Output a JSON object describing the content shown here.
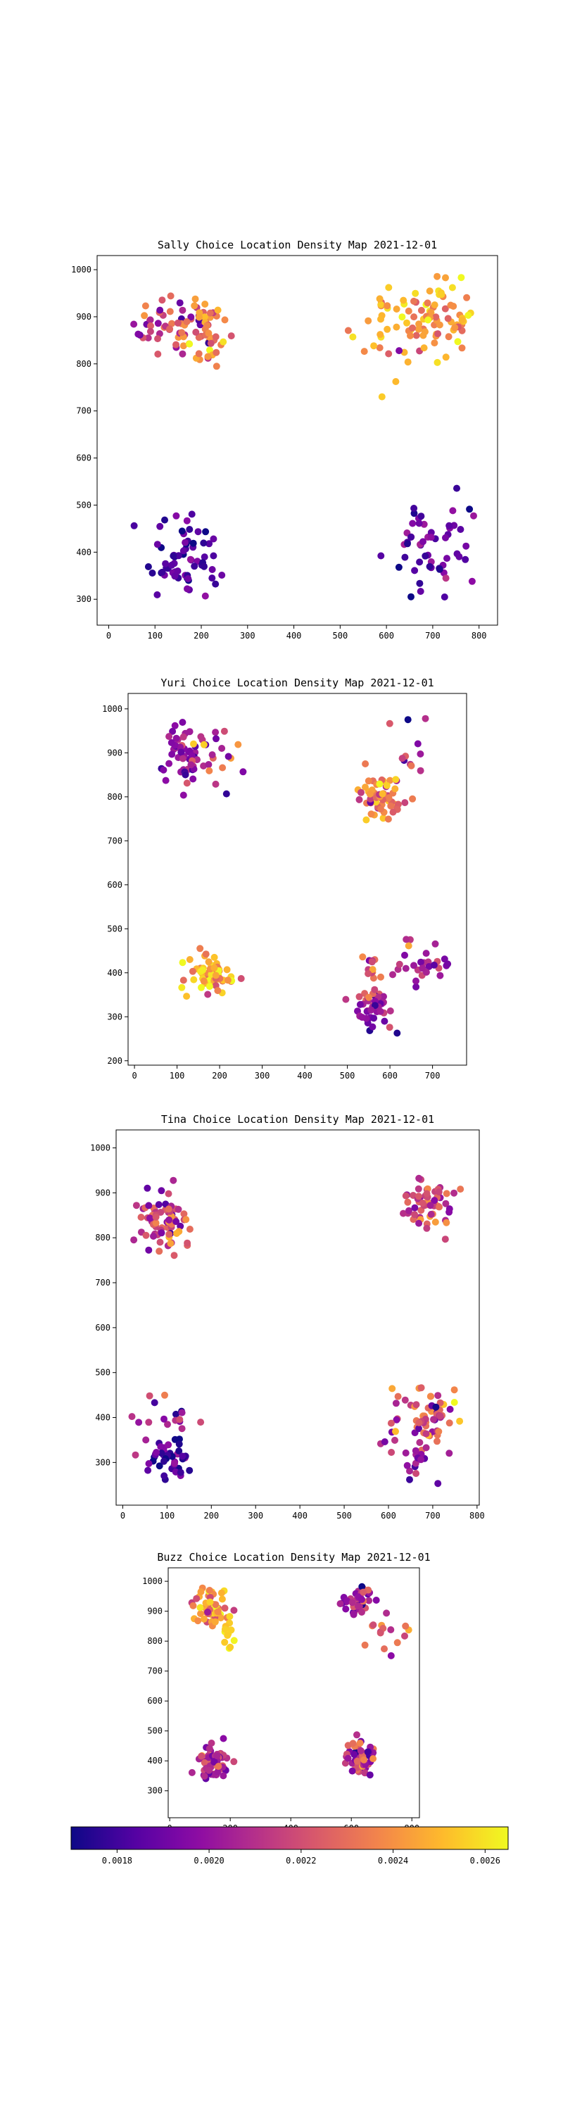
{
  "figure": {
    "colormap": "plasma",
    "colorbar": {
      "min": 0.0017,
      "max": 0.00265,
      "ticks": [
        0.0018,
        0.002,
        0.0022,
        0.0024,
        0.0026
      ],
      "tick_labels": [
        "0.0018",
        "0.0020",
        "0.0022",
        "0.0024",
        "0.0026"
      ]
    },
    "plasma_stops": [
      "#0d0887",
      "#5302a3",
      "#8b0aa5",
      "#b83289",
      "#db5c68",
      "#f48849",
      "#febd2a",
      "#f0f921"
    ]
  },
  "chart_data": [
    {
      "type": "scatter",
      "title": "Sally Choice Location Density Map 2021-12-01",
      "xlim": [
        -25,
        840
      ],
      "ylim": [
        245,
        1030
      ],
      "xticks": [
        0,
        100,
        200,
        300,
        400,
        500,
        600,
        700,
        800
      ],
      "yticks": [
        300,
        400,
        500,
        600,
        700,
        800,
        900,
        1000
      ],
      "grid": false,
      "clusters": [
        {
          "x": 140,
          "y": 885,
          "sx": 45,
          "sy": 35,
          "n": 55,
          "value": 0.00215,
          "spread": 0.0002
        },
        {
          "x": 210,
          "y": 860,
          "sx": 30,
          "sy": 45,
          "n": 40,
          "value": 0.00238,
          "spread": 0.00015
        },
        {
          "x": 700,
          "y": 890,
          "sx": 45,
          "sy": 40,
          "n": 80,
          "value": 0.00245,
          "spread": 0.00012
        },
        {
          "x": 600,
          "y": 880,
          "sx": 40,
          "sy": 70,
          "n": 20,
          "value": 0.0025,
          "spread": 0.0001
        },
        {
          "x": 170,
          "y": 390,
          "sx": 40,
          "sy": 45,
          "n": 65,
          "value": 0.0018,
          "spread": 8e-05
        },
        {
          "x": 690,
          "y": 410,
          "sx": 45,
          "sy": 45,
          "n": 55,
          "value": 0.0019,
          "spread": 0.0001
        }
      ]
    },
    {
      "type": "scatter",
      "title": "Yuri Choice Location Density Map 2021-12-01",
      "xlim": [
        -15,
        780
      ],
      "ylim": [
        190,
        1035
      ],
      "xticks": [
        0,
        100,
        200,
        300,
        400,
        500,
        600,
        700
      ],
      "yticks": [
        200,
        300,
        400,
        500,
        600,
        700,
        800,
        900,
        1000
      ],
      "grid": false,
      "clusters": [
        {
          "x": 115,
          "y": 900,
          "sx": 25,
          "sy": 35,
          "n": 55,
          "value": 0.002,
          "spread": 0.00012
        },
        {
          "x": 185,
          "y": 890,
          "sx": 35,
          "sy": 40,
          "n": 18,
          "value": 0.00215,
          "spread": 0.0002
        },
        {
          "x": 580,
          "y": 800,
          "sx": 25,
          "sy": 25,
          "n": 60,
          "value": 0.00235,
          "spread": 0.00012
        },
        {
          "x": 620,
          "y": 880,
          "sx": 40,
          "sy": 70,
          "n": 12,
          "value": 0.00205,
          "spread": 0.0002
        },
        {
          "x": 185,
          "y": 395,
          "sx": 30,
          "sy": 25,
          "n": 60,
          "value": 0.00245,
          "spread": 0.00015
        },
        {
          "x": 560,
          "y": 310,
          "sx": 25,
          "sy": 30,
          "n": 40,
          "value": 0.002,
          "spread": 0.00012
        },
        {
          "x": 560,
          "y": 400,
          "sx": 15,
          "sy": 30,
          "n": 15,
          "value": 0.00225,
          "spread": 0.00012
        },
        {
          "x": 680,
          "y": 420,
          "sx": 30,
          "sy": 25,
          "n": 28,
          "value": 0.00205,
          "spread": 0.00012
        }
      ]
    },
    {
      "type": "scatter",
      "title": "Tina Choice Location Density Map 2021-12-01",
      "xlim": [
        -15,
        805
      ],
      "ylim": [
        205,
        1040
      ],
      "xticks": [
        0,
        100,
        200,
        300,
        400,
        500,
        600,
        700,
        800
      ],
      "yticks": [
        300,
        400,
        500,
        600,
        700,
        800,
        900,
        1000
      ],
      "grid": false,
      "clusters": [
        {
          "x": 80,
          "y": 850,
          "sx": 30,
          "sy": 35,
          "n": 45,
          "value": 0.0021,
          "spread": 0.00015
        },
        {
          "x": 110,
          "y": 830,
          "sx": 25,
          "sy": 25,
          "n": 25,
          "value": 0.00228,
          "spread": 0.00015
        },
        {
          "x": 690,
          "y": 870,
          "sx": 35,
          "sy": 30,
          "n": 60,
          "value": 0.0022,
          "spread": 0.00015
        },
        {
          "x": 110,
          "y": 310,
          "sx": 25,
          "sy": 25,
          "n": 45,
          "value": 0.00185,
          "spread": 0.0001
        },
        {
          "x": 100,
          "y": 400,
          "sx": 35,
          "sy": 35,
          "n": 18,
          "value": 0.00205,
          "spread": 0.00015
        },
        {
          "x": 680,
          "y": 400,
          "sx": 35,
          "sy": 40,
          "n": 60,
          "value": 0.0023,
          "spread": 0.00018
        },
        {
          "x": 680,
          "y": 320,
          "sx": 40,
          "sy": 25,
          "n": 20,
          "value": 0.002,
          "spread": 0.00012
        }
      ]
    },
    {
      "type": "scatter",
      "title": "Buzz Choice Location Density Map 2021-12-01",
      "xlim": [
        -5,
        825
      ],
      "ylim": [
        210,
        1045
      ],
      "xticks": [
        0,
        200,
        400,
        600,
        800
      ],
      "yticks": [
        300,
        400,
        500,
        600,
        700,
        800,
        900,
        1000
      ],
      "grid": false,
      "clusters": [
        {
          "x": 140,
          "y": 910,
          "sx": 30,
          "sy": 30,
          "n": 60,
          "value": 0.00238,
          "spread": 0.00015
        },
        {
          "x": 190,
          "y": 820,
          "sx": 20,
          "sy": 35,
          "n": 12,
          "value": 0.0025,
          "spread": 0.0001
        },
        {
          "x": 620,
          "y": 930,
          "sx": 25,
          "sy": 25,
          "n": 45,
          "value": 0.0021,
          "spread": 0.00015
        },
        {
          "x": 710,
          "y": 840,
          "sx": 30,
          "sy": 30,
          "n": 15,
          "value": 0.00225,
          "spread": 0.00015
        },
        {
          "x": 140,
          "y": 400,
          "sx": 25,
          "sy": 30,
          "n": 60,
          "value": 0.0021,
          "spread": 0.00015
        },
        {
          "x": 630,
          "y": 410,
          "sx": 25,
          "sy": 30,
          "n": 55,
          "value": 0.0021,
          "spread": 0.00015
        }
      ]
    }
  ]
}
